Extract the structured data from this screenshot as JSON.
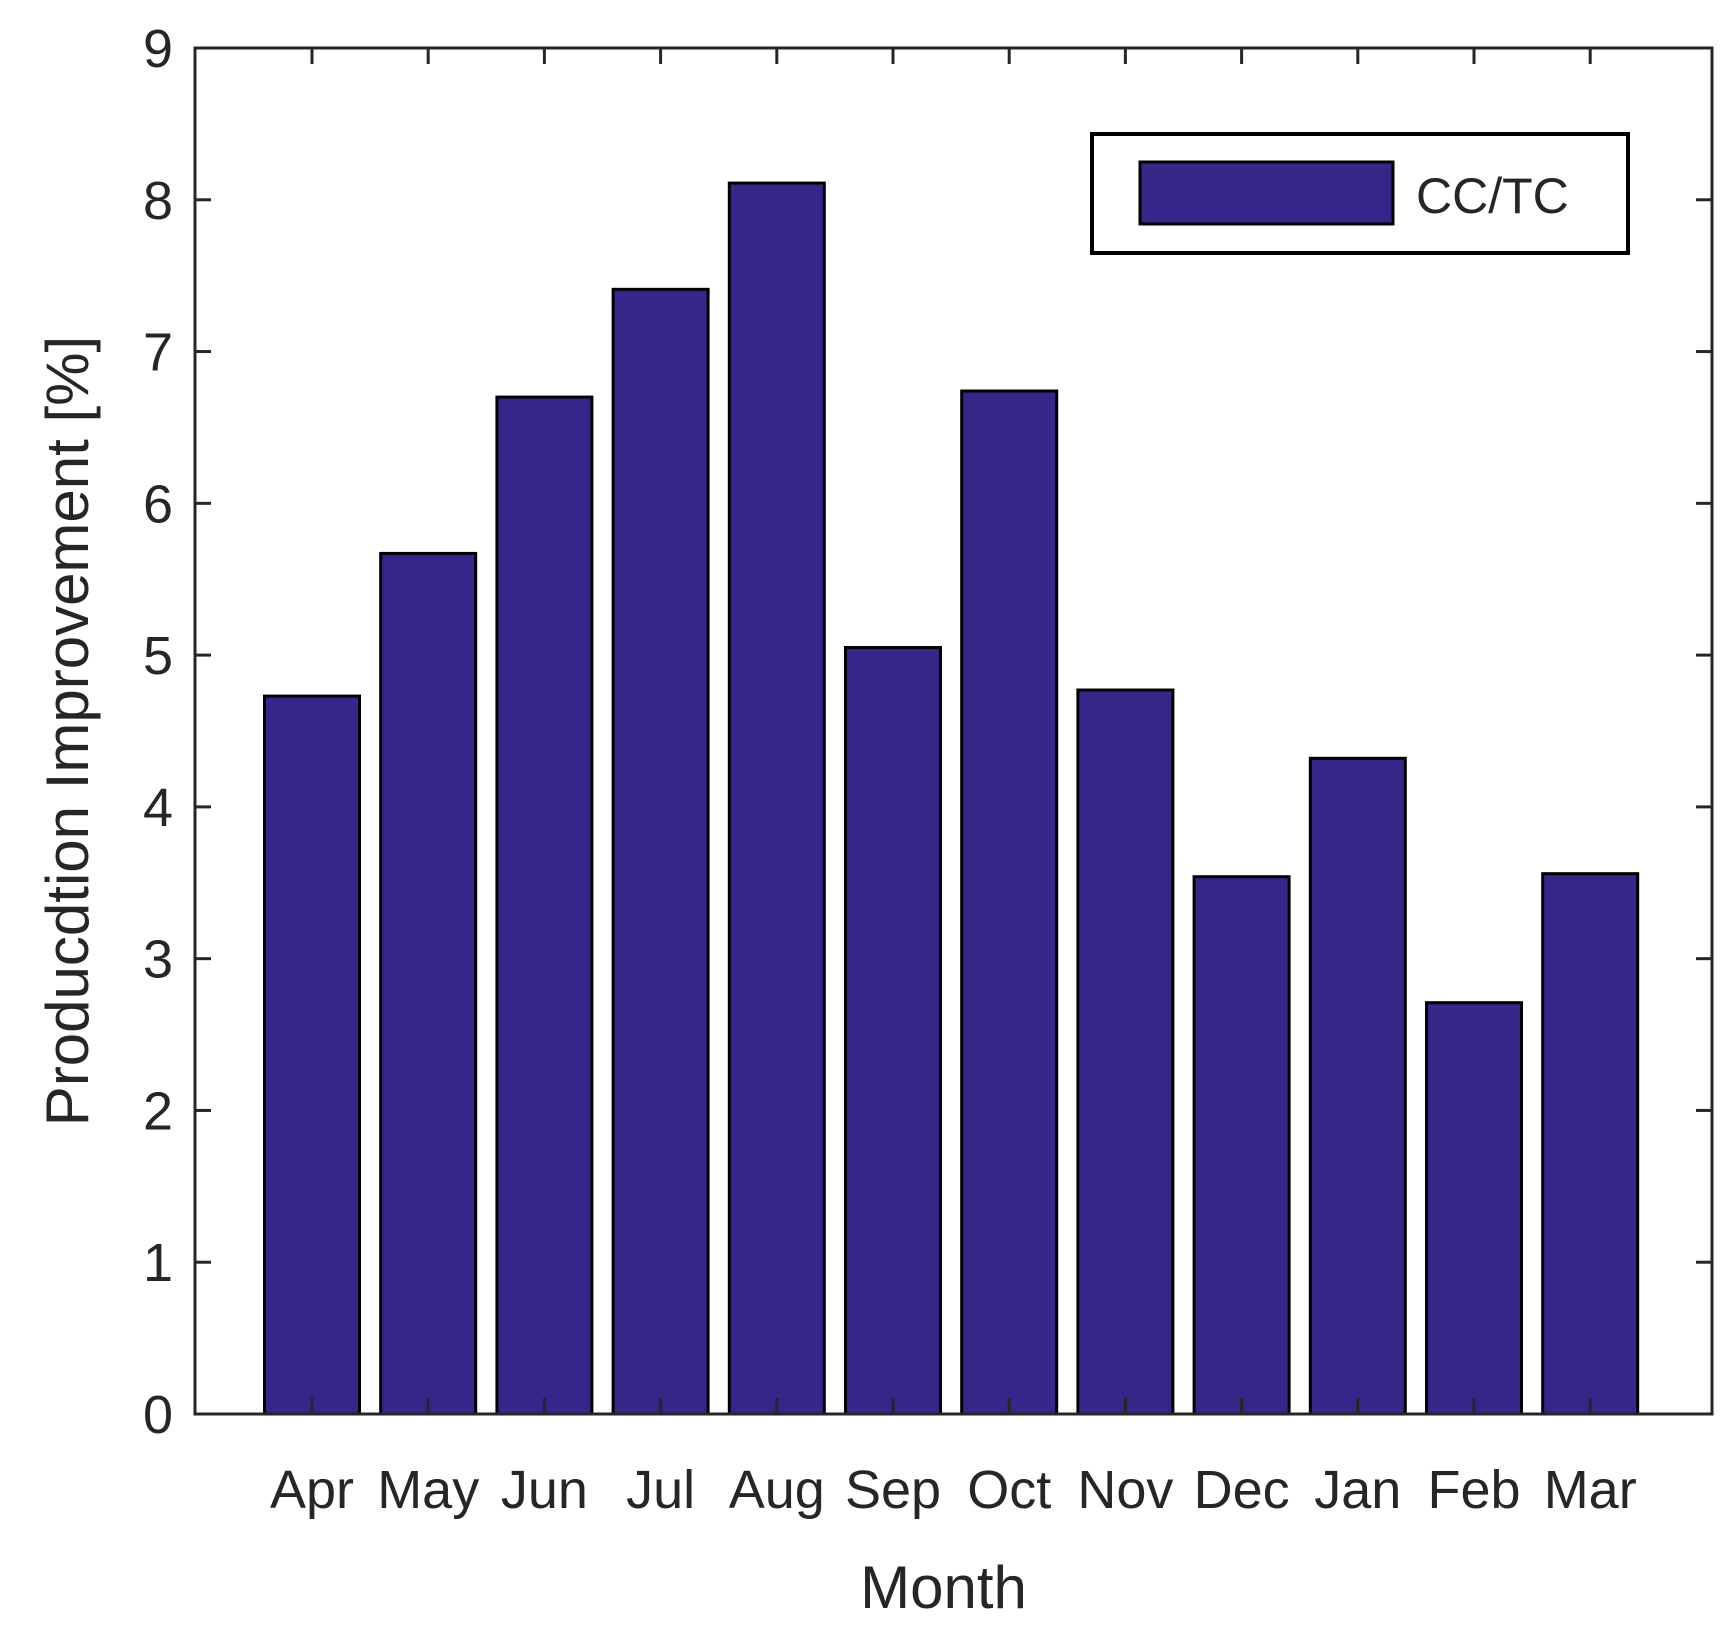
{
  "chart_data": {
    "type": "bar",
    "title": "",
    "xlabel": "Month",
    "ylabel": "Producdtion Improvement [%]",
    "categories": [
      "Apr",
      "May",
      "Jun",
      "Jul",
      "Aug",
      "Sep",
      "Oct",
      "Nov",
      "Dec",
      "Jan",
      "Feb",
      "Mar"
    ],
    "series": [
      {
        "name": "CC/TC",
        "values": [
          4.73,
          5.67,
          6.7,
          7.41,
          8.11,
          5.05,
          6.74,
          4.77,
          3.54,
          4.32,
          2.71,
          3.56
        ],
        "color": "#35278a"
      }
    ],
    "ylim": [
      0,
      9
    ],
    "yticks": [
      "0",
      "1",
      "2",
      "3",
      "4",
      "5",
      "6",
      "7",
      "8",
      "9"
    ],
    "grid": false,
    "legend_position": "top-right"
  }
}
